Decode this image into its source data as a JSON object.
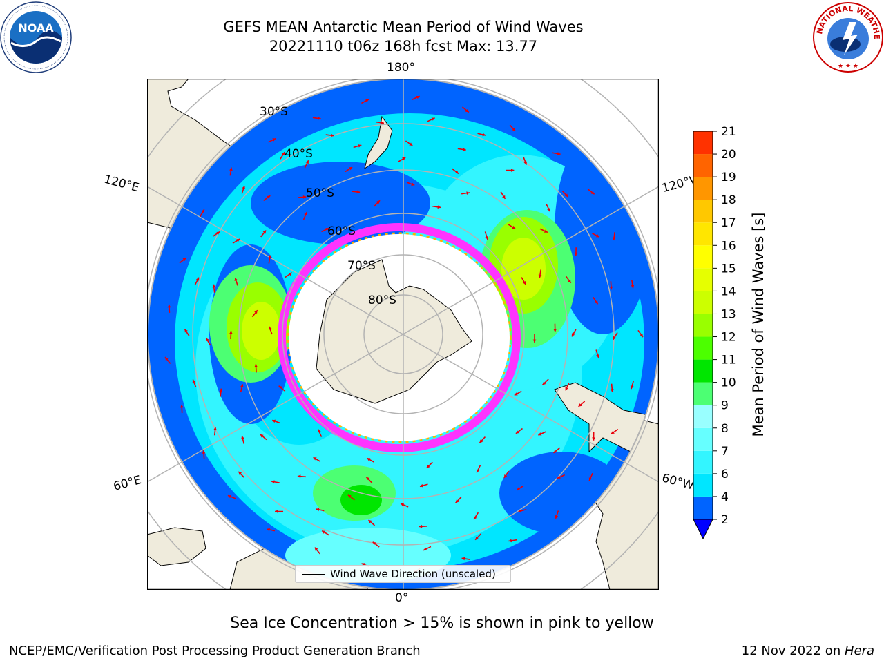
{
  "header": {
    "title_line1": "GEFS MEAN Antarctic Mean Period of Wind Waves",
    "title_line2": "20221110 t06z 168h fcst   Max: 13.77"
  },
  "logos": {
    "left": {
      "text": "NOAA",
      "ring_text": "NATIONAL OCEANIC AND ATMOSPHERIC ADMINISTRATION · U.S. DEPARTMENT OF COMMERCE",
      "icon": "noaa-logo-icon"
    },
    "right": {
      "ring_text": "NATIONAL WEATHER SERVICE",
      "icon": "nws-logo-icon"
    }
  },
  "map": {
    "projection": "south polar stereographic",
    "longitude_labels": {
      "top": "180°",
      "bottom": "0°",
      "upper_left": "120°E",
      "upper_right": "120°W",
      "lower_left": "60°E",
      "lower_right": "60°W"
    },
    "latitude_labels": [
      "30°S",
      "40°S",
      "50°S",
      "60°S",
      "70°S",
      "80°S"
    ],
    "legend": "Wind Wave Direction (unscaled)",
    "colors": {
      "land": "#efebdc",
      "ocean_fill": "#ffffff",
      "grid": "#b3b3b3",
      "arrow": "#e8000b"
    }
  },
  "colorbar": {
    "label": "Mean Period of Wind Waves [s]",
    "ticks": [
      "21",
      "20",
      "19",
      "18",
      "17",
      "16",
      "15",
      "14",
      "13",
      "12",
      "11",
      "10",
      "9",
      "8",
      "7",
      "6",
      "4",
      "2"
    ],
    "levels": [
      2,
      4,
      6,
      7,
      8,
      9,
      10,
      11,
      12,
      13,
      14,
      15,
      16,
      17,
      18,
      19,
      20,
      21
    ],
    "colors": [
      "#0064ff",
      "#00e6ff",
      "#33f5ff",
      "#66ffff",
      "#99ffff",
      "#4cff73",
      "#00e600",
      "#4cff00",
      "#99ff00",
      "#ccff00",
      "#e6ff00",
      "#ffff00",
      "#ffe600",
      "#ffc800",
      "#ff9600",
      "#ff6400",
      "#ff3200",
      "#ff0000"
    ],
    "extend_color": "#0000ff"
  },
  "notes": {
    "sea_ice": "Sea Ice Concentration > 15% is shown in pink to yellow"
  },
  "footer": {
    "left": "NCEP/EMC/Verification Post Processing Product Generation Branch",
    "date": "12 Nov 2022 on ",
    "machine": "Hera"
  }
}
